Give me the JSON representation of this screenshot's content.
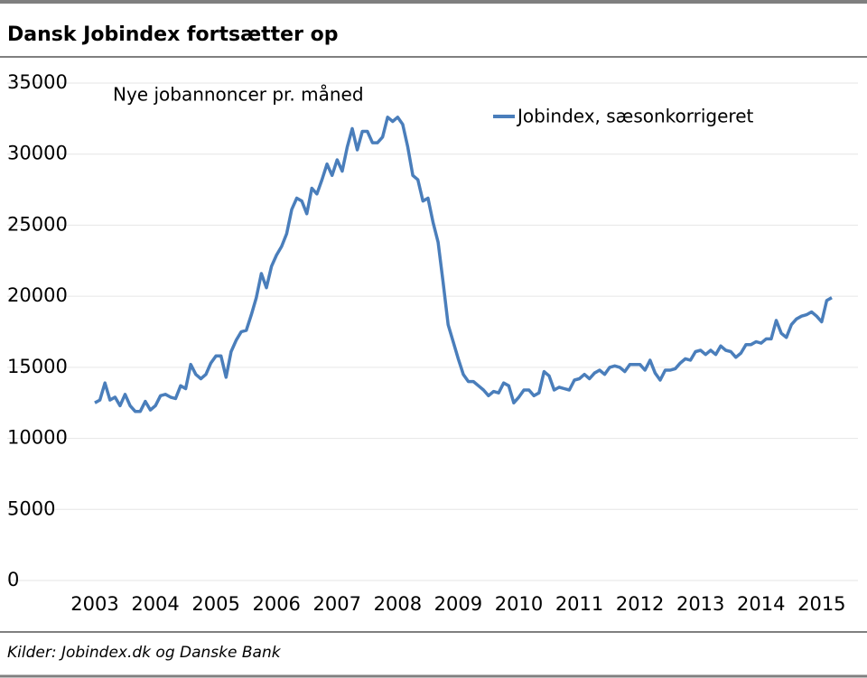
{
  "chart_data": {
    "type": "line",
    "title": "Dansk Jobindex fortsætter op",
    "annotation": "Nye jobannoncer pr. måned",
    "source": "Kilder: Jobindex.dk og Danske Bank",
    "categories": [
      "2003",
      null,
      null,
      null,
      null,
      null,
      null,
      null,
      null,
      null,
      null,
      null,
      "2004",
      null,
      null,
      null,
      null,
      null,
      null,
      null,
      null,
      null,
      null,
      null,
      "2005",
      null,
      null,
      null,
      null,
      null,
      null,
      null,
      null,
      null,
      null,
      null,
      "2006",
      null,
      null,
      null,
      null,
      null,
      null,
      null,
      null,
      null,
      null,
      null,
      "2007",
      null,
      null,
      null,
      null,
      null,
      null,
      null,
      null,
      null,
      null,
      null,
      "2008",
      null,
      null,
      null,
      null,
      null,
      null,
      null,
      null,
      null,
      null,
      null,
      "2009",
      null,
      null,
      null,
      null,
      null,
      null,
      null,
      null,
      null,
      null,
      null,
      "2010",
      null,
      null,
      null,
      null,
      null,
      null,
      null,
      null,
      null,
      null,
      null,
      "2011",
      null,
      null,
      null,
      null,
      null,
      null,
      null,
      null,
      null,
      null,
      null,
      "2012",
      null,
      null,
      null,
      null,
      null,
      null,
      null,
      null,
      null,
      null,
      null,
      "2013",
      null,
      null,
      null,
      null,
      null,
      null,
      null,
      null,
      null,
      null,
      null,
      "2014",
      null,
      null,
      null,
      null,
      null,
      null,
      null,
      null,
      null,
      null,
      null,
      "2015",
      null,
      null
    ],
    "series": [
      {
        "name": "Jobindex, sæsonkorrigeret",
        "color": "#4a7ebb",
        "values": [
          12500,
          12700,
          13900,
          12700,
          12900,
          12300,
          13100,
          12300,
          11900,
          11900,
          12600,
          12000,
          12300,
          13000,
          13100,
          12900,
          12800,
          13700,
          13500,
          15200,
          14500,
          14200,
          14500,
          15300,
          15800,
          15800,
          14300,
          16100,
          16900,
          17500,
          17600,
          18700,
          19900,
          21600,
          20600,
          22100,
          22900,
          23500,
          24400,
          26100,
          26900,
          26700,
          25800,
          27600,
          27200,
          28200,
          29300,
          28500,
          29600,
          28800,
          30500,
          31800,
          30300,
          31600,
          31600,
          30800,
          30800,
          31200,
          32600,
          32300,
          32600,
          32100,
          30500,
          28500,
          28200,
          26700,
          26900,
          25200,
          23800,
          21000,
          18000,
          16800,
          15600,
          14500,
          14000,
          14000,
          13700,
          13400,
          13000,
          13300,
          13200,
          13900,
          13700,
          12500,
          12900,
          13400,
          13400,
          13000,
          13200,
          14700,
          14400,
          13400,
          13600,
          13500,
          13400,
          14100,
          14200,
          14500,
          14200,
          14600,
          14800,
          14500,
          15000,
          15100,
          15000,
          14700,
          15200,
          15200,
          15200,
          14800,
          15500,
          14600,
          14100,
          14800,
          14800,
          14900,
          15300,
          15600,
          15500,
          16100,
          16200,
          15900,
          16200,
          15900,
          16500,
          16200,
          16100,
          15700,
          16000,
          16600,
          16600,
          16800,
          16700,
          17000,
          17000,
          18300,
          17400,
          17100,
          18000,
          18400,
          18600,
          18700,
          18900,
          18600,
          18200,
          19700,
          19900
        ]
      }
    ],
    "ylim": [
      0,
      35000
    ],
    "yticks": [
      0,
      5000,
      10000,
      15000,
      20000,
      25000,
      30000,
      35000
    ],
    "grid": true
  }
}
